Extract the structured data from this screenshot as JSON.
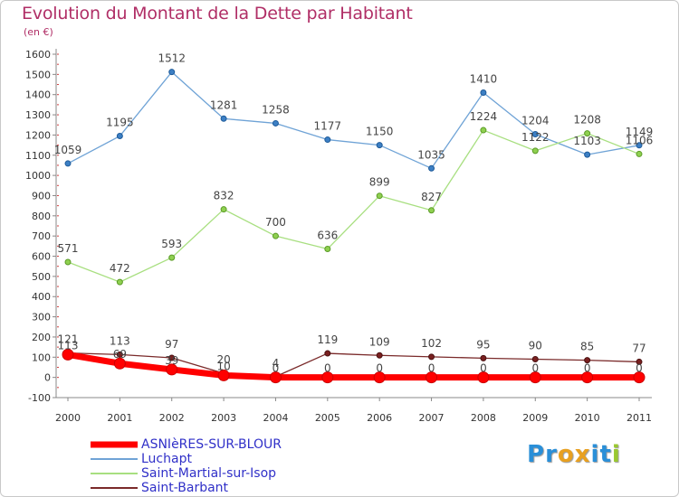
{
  "title": "Evolution du Montant de la Dette par Habitant",
  "subtitle": "(en €)",
  "logo_text": "Proxiti",
  "logo_colors": [
    "#2a8fd8",
    "#2a8fd8",
    "#e8a020",
    "#e8a020",
    "#2a8fd8",
    "#2a8fd8",
    "#9ac830"
  ],
  "chart_data": {
    "type": "line",
    "title": "Evolution du Montant de la Dette par Habitant",
    "subtitle": "(en €)",
    "xlabel": "",
    "ylabel": "",
    "x": [
      "2000",
      "2001",
      "2002",
      "2003",
      "2004",
      "2005",
      "2006",
      "2007",
      "2008",
      "2009",
      "2010",
      "2011"
    ],
    "ylim": [
      -100,
      1600
    ],
    "yticks": [
      -100,
      0,
      100,
      200,
      300,
      400,
      500,
      600,
      700,
      800,
      900,
      1000,
      1100,
      1200,
      1300,
      1400,
      1500,
      1600
    ],
    "grid": false,
    "legend_position": "bottom-left",
    "series": [
      {
        "name": "ASNIèRES-SUR-BLOUR",
        "color": "#ff0000",
        "values": [
          113,
          69,
          39,
          10,
          0,
          0,
          0,
          0,
          0,
          0,
          0,
          0
        ],
        "labels": [
          "113",
          "69",
          "39",
          "10",
          "0",
          "0",
          "0",
          "0",
          "0",
          "0",
          "0",
          "0"
        ]
      },
      {
        "name": "Luchapt",
        "color": "#6fa3d6",
        "values": [
          1059,
          1195,
          1512,
          1281,
          1258,
          1177,
          1150,
          1035,
          1410,
          1204,
          1103,
          1149
        ],
        "labels": [
          "1059",
          "1195",
          "1512",
          "1281",
          "1258",
          "1177",
          "1150",
          "1035",
          "1410",
          "1204",
          "1103",
          "1149"
        ]
      },
      {
        "name": "Saint-Martial-sur-Isop",
        "color": "#a8df80",
        "values": [
          571,
          472,
          593,
          832,
          700,
          636,
          899,
          827,
          1224,
          1122,
          1208,
          1106
        ],
        "labels": [
          "571",
          "472",
          "593",
          "832",
          "700",
          "636",
          "899",
          "827",
          "1224",
          "1122",
          "1208",
          "1106"
        ]
      },
      {
        "name": "Saint-Barbant",
        "color": "#7a2a2a",
        "values": [
          121,
          113,
          97,
          20,
          4,
          119,
          109,
          102,
          95,
          90,
          85,
          77
        ],
        "labels": [
          "121",
          "113",
          "97",
          "20",
          "4",
          "119",
          "109",
          "102",
          "95",
          "90",
          "85",
          "77"
        ]
      }
    ]
  }
}
